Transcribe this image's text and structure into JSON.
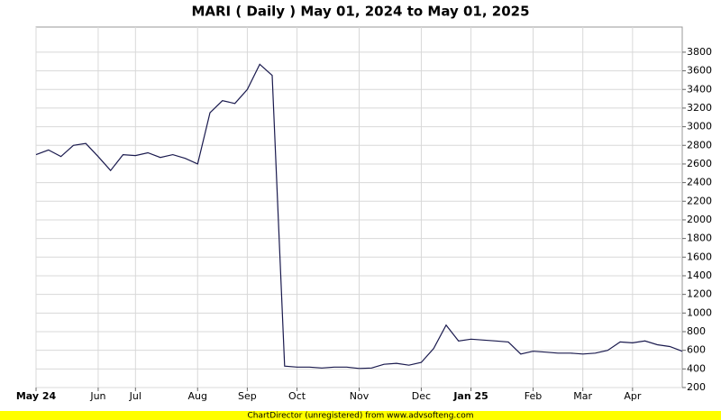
{
  "chart_data": {
    "type": "line",
    "title": "MARI ( Daily ) May 01, 2024 to May 01, 2025",
    "footer": "ChartDirector (unregistered) from www.advsofteng.com",
    "categories": [
      "May 24",
      null,
      null,
      null,
      null,
      "Jun",
      null,
      null,
      "Jul",
      null,
      null,
      null,
      null,
      "Aug",
      null,
      null,
      null,
      "Sep",
      null,
      null,
      null,
      "Oct",
      null,
      null,
      null,
      null,
      "Nov",
      null,
      null,
      null,
      null,
      "Dec",
      null,
      null,
      null,
      "Jan 25",
      null,
      null,
      null,
      null,
      "Feb",
      null,
      null,
      null,
      "Mar",
      null,
      null,
      null,
      "Apr",
      null,
      null,
      null,
      null
    ],
    "series": [
      {
        "name": "MARI",
        "color": "#1a1a4e",
        "values": [
          2700,
          2750,
          2680,
          2800,
          2820,
          2680,
          2530,
          2700,
          2690,
          2720,
          2670,
          2700,
          2660,
          2600,
          3150,
          3280,
          3250,
          3400,
          3670,
          3550,
          430,
          420,
          420,
          410,
          420,
          420,
          405,
          410,
          450,
          460,
          440,
          470,
          620,
          870,
          700,
          720,
          710,
          700,
          690,
          560,
          590,
          580,
          570,
          570,
          560,
          570,
          600,
          690,
          680,
          700,
          660,
          640,
          590
        ]
      }
    ],
    "ylim": [
      200,
      4070
    ],
    "yticks": [
      200,
      400,
      600,
      800,
      1000,
      1200,
      1400,
      1600,
      1800,
      2000,
      2200,
      2400,
      2600,
      2800,
      3000,
      3200,
      3400,
      3600,
      3800
    ],
    "grid": true
  }
}
